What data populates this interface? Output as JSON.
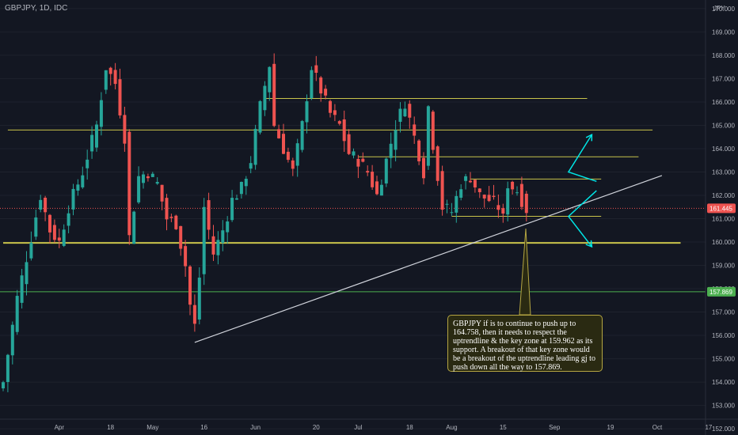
{
  "header": {
    "symbol": "GBPJPY, 1D, IDC",
    "currency": "JPY"
  },
  "colors": {
    "up": "#26a69a",
    "down": "#ef5350",
    "background": "#131722",
    "axis_text": "#b2b5be",
    "level_line": "#c8c34a",
    "green_line": "#4caf50",
    "arrow": "#00e5e5",
    "trendline": "#d1d4dc"
  },
  "annotation": {
    "text": "GBPJPY if is to continue to push up to 164.758, then it needs to respect the uptrendline & the key zone at 159.962 as its support. A breakout of that key zone would be a breakout of the uptrendline leading gj to push down all the way to 157.869."
  },
  "chart_data": {
    "type": "candlestick",
    "y_axis_label": "JPY",
    "ylim": [
      151.8,
      170.2
    ],
    "y_ticks": [
      152,
      153,
      154,
      155,
      156,
      157,
      158,
      159,
      160,
      161,
      162,
      163,
      164,
      165,
      166,
      167,
      168,
      169,
      170
    ],
    "y_tick_labels": [
      "152.000",
      "153.000",
      "154.000",
      "155.000",
      "156.000",
      "157.000",
      "158.000",
      "159.000",
      "160.000",
      "161.000",
      "162.000",
      "163.000",
      "164.000",
      "165.000",
      "166.000",
      "167.000",
      "168.000",
      "169.000",
      "170.000"
    ],
    "x_tick_labels": [
      "Apr",
      "18",
      "May",
      "16",
      "Jun",
      "20",
      "Jul",
      "18",
      "Aug",
      "15",
      "Sep",
      "19",
      "Oct",
      "17"
    ],
    "x_ticks_index": [
      12,
      23,
      32,
      43,
      54,
      67,
      76,
      87,
      96,
      107,
      118,
      130,
      140,
      151
    ],
    "price_labels": [
      {
        "value": 161.445,
        "text": "161.445",
        "color": "#ef5350"
      },
      {
        "value": 157.869,
        "text": "157.869",
        "color": "#4caf50"
      }
    ],
    "horizontal_levels": [
      {
        "value": 166.15,
        "from_index": 56,
        "to_index": 125
      },
      {
        "value": 164.8,
        "from_index": 1,
        "to_index": 139
      },
      {
        "value": 163.65,
        "from_index": 76,
        "to_index": 136
      },
      {
        "value": 162.7,
        "from_index": 100,
        "to_index": 128
      },
      {
        "value": 161.1,
        "from_index": 96,
        "to_index": 128
      },
      {
        "value": 159.962,
        "from_index": 0,
        "to_index": 145,
        "thick": true
      }
    ],
    "green_level": 157.869,
    "trendline": {
      "from": [
        41,
        155.7
      ],
      "to": [
        141,
        162.85
      ]
    },
    "arrows": [
      {
        "points": [
          [
            127,
            162.2
          ],
          [
            121,
            161.1
          ],
          [
            126,
            159.8
          ]
        ],
        "direction": "down"
      },
      {
        "points": [
          [
            127,
            162.6
          ],
          [
            121,
            163.0
          ],
          [
            126,
            164.6
          ]
        ],
        "direction": "up"
      }
    ],
    "ohlc": []
  }
}
